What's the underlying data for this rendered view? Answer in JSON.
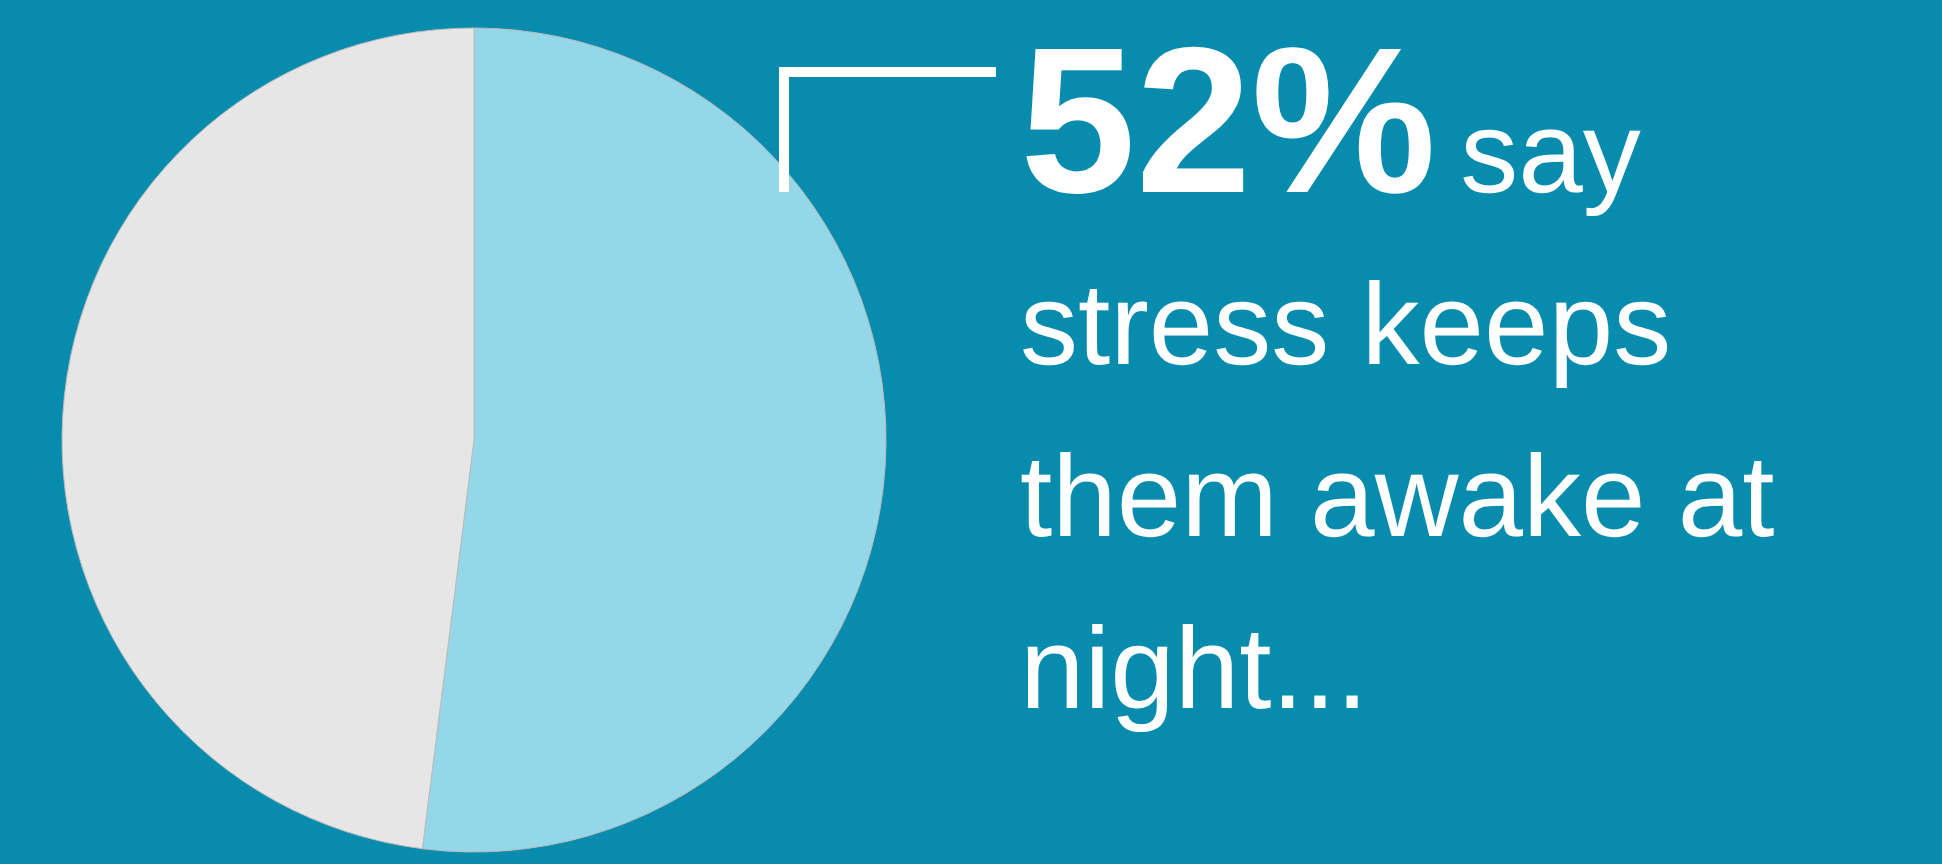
{
  "chart_data": {
    "type": "pie",
    "categories": [
      null,
      null
    ],
    "values": [
      52,
      48
    ],
    "colors": [
      "#93d7e8",
      "#e6e6e6"
    ],
    "value_labels": [
      "52%",
      null
    ],
    "annotations": [
      "say stress keeps them awake at night..."
    ]
  }
}
